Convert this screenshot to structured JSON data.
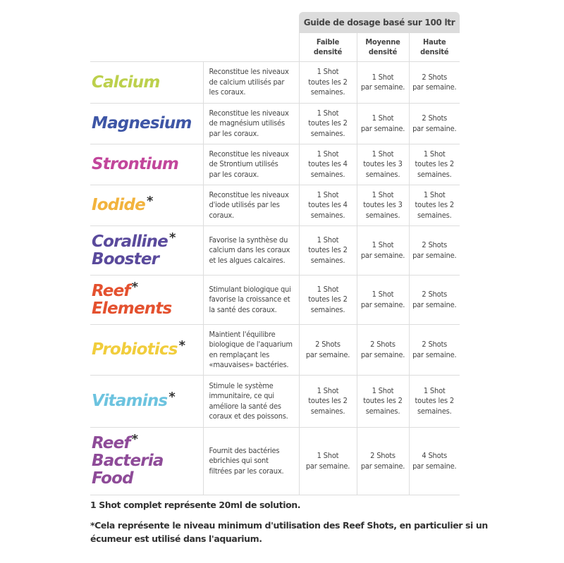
{
  "guide_title": "Guide de dosage basé sur 100 ltr",
  "columns": [
    "Faible\ndensité",
    "Moyenne\ndensité",
    "Haute\ndensité"
  ],
  "rows": [
    {
      "name": [
        "Calcium"
      ],
      "asterisk": false,
      "color": "#bcd04c",
      "desc": "Reconstitue les niveaux\nde calcium utilisés par\nles coraux.",
      "doses": [
        "1 Shot\ntoutes les 2\nsemaines.",
        "1 Shot\npar semaine.",
        "2 Shots\npar semaine."
      ]
    },
    {
      "name": [
        "Magnesium"
      ],
      "asterisk": false,
      "color": "#3e56a6",
      "desc": "Reconstitue les niveaux\nde magnésium utilisés\npar les coraux.",
      "doses": [
        "1 Shot\ntoutes les 2\nsemaines.",
        "1 Shot\npar semaine.",
        "2 Shots\npar semaine."
      ]
    },
    {
      "name": [
        "Strontium"
      ],
      "asterisk": false,
      "color": "#c2469b",
      "desc": "Reconstitue les niveaux\nde Strontium utilisés\npar les coraux.",
      "doses": [
        "1 Shot\ntoutes les 4\nsemaines.",
        "1 Shot\ntoutes les 3\nsemaines.",
        "1 Shot\ntoutes les 2\nsemaines."
      ]
    },
    {
      "name": [
        "Iodide"
      ],
      "asterisk": true,
      "color": "#f2b33d",
      "desc": "Reconstitue les niveaux\nd'iode utilisés par les\ncoraux.",
      "doses": [
        "1 Shot\ntoutes les 4\nsemaines.",
        "1 Shot\ntoutes les 3\nsemaines.",
        "1 Shot\ntoutes les 2\nsemaines."
      ]
    },
    {
      "name": [
        "Coralline",
        "Booster"
      ],
      "asterisk": true,
      "color": "#5a4a9c",
      "desc": "Favorise la synthèse du\ncalcium dans les coraux\net les algues calcaires.",
      "doses": [
        "1 Shot\ntoutes les 2\nsemaines.",
        "1 Shot\npar semaine.",
        "2 Shots\npar semaine."
      ]
    },
    {
      "name": [
        "Reef",
        "Elements"
      ],
      "asterisk": true,
      "color": "#e4512f",
      "desc": "Stimulant biologique qui\nfavorise la croissance et\nla santé des coraux.",
      "doses": [
        "1 Shot\ntoutes les 2\nsemaines.",
        "1 Shot\npar semaine.",
        "2 Shots\npar semaine."
      ]
    },
    {
      "name": [
        "Probiotics"
      ],
      "asterisk": true,
      "color": "#f1cd3c",
      "desc": "Maintient l'équilibre\nbiologique de l'aquarium\nen remplaçant les\n«mauvaises» bactéries.",
      "doses": [
        "2 Shots\npar semaine.",
        "2 Shots\npar semaine.",
        "2 Shots\npar semaine."
      ]
    },
    {
      "name": [
        "Vitamins"
      ],
      "asterisk": true,
      "color": "#6cc3df",
      "desc": "Stimule le système\nimmunitaire, ce qui\naméliore la santé des\ncoraux et des poissons.",
      "doses": [
        "1 Shot\ntoutes les 2\nsemaines.",
        "1 Shot\ntoutes les 2\nsemaines.",
        "1 Shot\ntoutes les 2\nsemaines."
      ]
    },
    {
      "name": [
        "Reef",
        "Bacteria",
        "Food"
      ],
      "asterisk": true,
      "color": "#8e4b98",
      "desc": "Fournit des bactéries\nebrichies qui sont\nfiltrées par les coraux.",
      "doses": [
        "1 Shot\npar semaine.",
        "2 Shots\npar semaine.",
        "4 Shots\npar semaine."
      ]
    }
  ],
  "footnotes": {
    "shot": "1 Shot complet représente 20ml de solution.",
    "asterisk": "*Cela représente le niveau minimum d'utilisation des Reef Shots, en particulier si un\nécumeur est utilisé dans l'aquarium."
  }
}
